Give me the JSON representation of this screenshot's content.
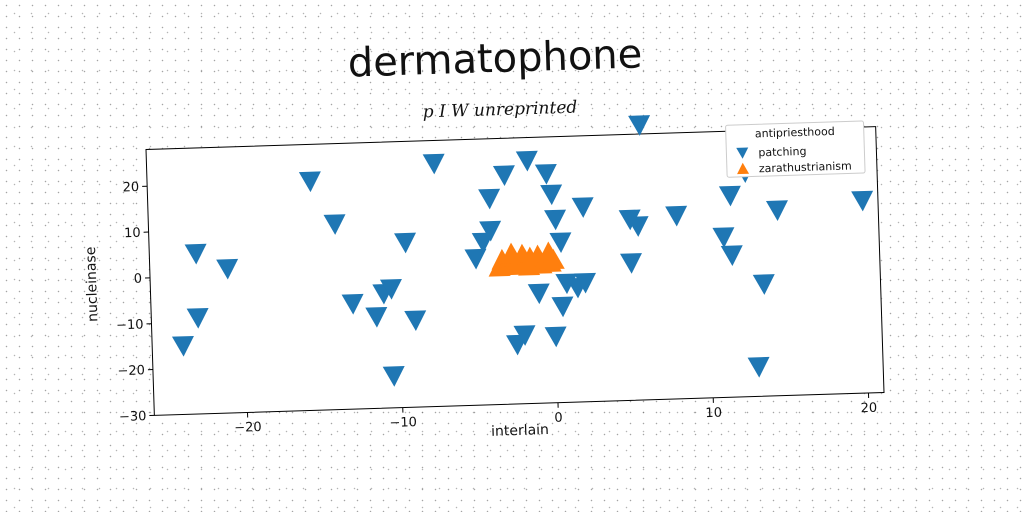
{
  "chart_data": {
    "type": "scatter",
    "title": "dermatophone",
    "subtitle": "p I W unreprinted",
    "xlabel": "interlain",
    "ylabel": "nucleinase",
    "xlim": [
      -26,
      21
    ],
    "ylim": [
      -30,
      28
    ],
    "xticks": [
      -20,
      -10,
      0,
      10,
      20
    ],
    "yticks": [
      -30,
      -20,
      -10,
      0,
      10,
      20
    ],
    "xtick_labels": [
      "−20",
      "−10",
      "0",
      "10",
      "20"
    ],
    "ytick_labels": [
      "−30",
      "−20",
      "−10",
      "0",
      "10",
      "20"
    ],
    "grid": false,
    "legend": {
      "title": "antipriesthood",
      "position": "top-right"
    },
    "series": [
      {
        "name": "patching",
        "marker": "triangle-down",
        "color": "#1f77b4",
        "points": [
          [
            -24,
            -15
          ],
          [
            -23,
            -9
          ],
          [
            -23,
            5
          ],
          [
            -21,
            1.5
          ],
          [
            -15.5,
            20
          ],
          [
            -14,
            10.5
          ],
          [
            -13,
            -7
          ],
          [
            -11.5,
            -10
          ],
          [
            -11,
            -5
          ],
          [
            -10.5,
            -4
          ],
          [
            -10.5,
            -23
          ],
          [
            -9.5,
            6
          ],
          [
            -9,
            -11
          ],
          [
            -7.5,
            23
          ],
          [
            -5,
            2
          ],
          [
            -4.5,
            5.5
          ],
          [
            -4,
            8
          ],
          [
            -4,
            15
          ],
          [
            -3,
            20
          ],
          [
            -2.5,
            -17
          ],
          [
            -2,
            -15
          ],
          [
            -1.5,
            23
          ],
          [
            -1,
            -6
          ],
          [
            0,
            -15.5
          ],
          [
            -0.3,
            20
          ],
          [
            0,
            15.5
          ],
          [
            0.2,
            10
          ],
          [
            0.5,
            5
          ],
          [
            0.5,
            -9
          ],
          [
            0.8,
            -4
          ],
          [
            1.5,
            -5
          ],
          [
            2,
            -4
          ],
          [
            2,
            12.5
          ],
          [
            5,
            9.5
          ],
          [
            5,
            0
          ],
          [
            5.5,
            8
          ],
          [
            5.8,
            30
          ],
          [
            8,
            10
          ],
          [
            11,
            5
          ],
          [
            11.5,
            14
          ],
          [
            11.5,
            1
          ],
          [
            12.5,
            19
          ],
          [
            13,
            -23.5
          ],
          [
            13.5,
            -5.5
          ],
          [
            14.5,
            10.5
          ],
          [
            19,
            23
          ],
          [
            20,
            12
          ]
        ]
      },
      {
        "name": "zarathustrianism",
        "marker": "triangle-up",
        "color": "#ff7f0e",
        "points": [
          [
            -3.5,
            0
          ],
          [
            -3.3,
            1.5
          ],
          [
            -3,
            0.5
          ],
          [
            -2.8,
            2
          ],
          [
            -2.5,
            0.2
          ],
          [
            -2.2,
            1.2
          ],
          [
            -2,
            2.5
          ],
          [
            -1.8,
            0.5
          ],
          [
            -1.5,
            1.8
          ],
          [
            -1.2,
            0.8
          ],
          [
            -1,
            2.2
          ],
          [
            -0.8,
            0.3
          ],
          [
            -0.5,
            1.5
          ],
          [
            -0.3,
            2.8
          ],
          [
            -0.2,
            0.6
          ],
          [
            0,
            1.2
          ],
          [
            -2.7,
            2.8
          ],
          [
            -1.6,
            0
          ]
        ]
      }
    ]
  }
}
